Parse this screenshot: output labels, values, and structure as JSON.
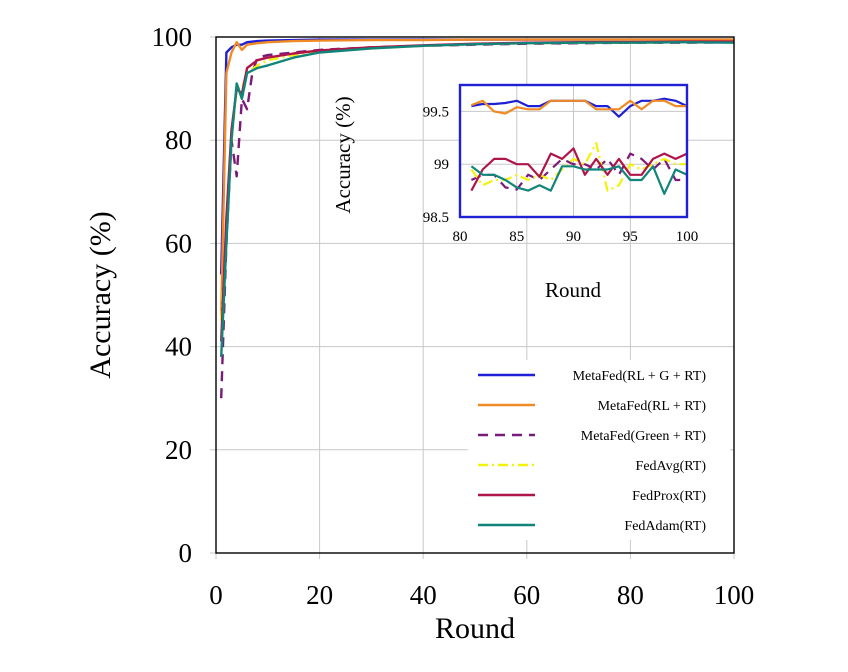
{
  "chart_data": [
    {
      "type": "line",
      "xlabel": "Round",
      "ylabel": "Accuracy (%)",
      "xlim": [
        0,
        100
      ],
      "ylim": [
        0,
        100
      ],
      "xticks": [
        0,
        20,
        40,
        60,
        80,
        100
      ],
      "yticks": [
        0,
        20,
        40,
        60,
        80,
        100
      ],
      "grid": true,
      "legend_position": "bottom-right",
      "series": [
        {
          "name": "MetaFed(RL + G + RT)",
          "color": "#1f1fd6",
          "dash": "solid",
          "x": [
            1,
            2,
            3,
            4,
            5,
            6,
            8,
            10,
            15,
            20,
            30,
            40,
            50,
            60,
            70,
            80,
            90,
            100
          ],
          "y": [
            54,
            97,
            98,
            98.5,
            98.5,
            99,
            99.2,
            99.3,
            99.4,
            99.5,
            99.5,
            99.5,
            99.5,
            99.5,
            99.5,
            99.5,
            99.5,
            99.5
          ]
        },
        {
          "name": "MetaFed(RL + RT)",
          "color": "#f08a24",
          "dash": "solid",
          "x": [
            1,
            2,
            3,
            4,
            5,
            6,
            8,
            10,
            15,
            20,
            30,
            40,
            50,
            60,
            70,
            80,
            90,
            100
          ],
          "y": [
            46,
            93,
            97,
            99,
            97.5,
            98.5,
            98.8,
            99,
            99.2,
            99.3,
            99.4,
            99.4,
            99.5,
            99.5,
            99.5,
            99.5,
            99.5,
            99.5
          ]
        },
        {
          "name": "MetaFed(Green + RT)",
          "color": "#7a1a7a",
          "dash": "dashed",
          "x": [
            1,
            2,
            3,
            4,
            5,
            6,
            7,
            8,
            10,
            15,
            20,
            30,
            40,
            50,
            60,
            70,
            80,
            90,
            100
          ],
          "y": [
            30,
            60,
            80,
            73,
            88,
            86,
            93,
            96,
            96.5,
            97,
            97.5,
            98,
            98.3,
            98.5,
            98.7,
            98.8,
            98.9,
            98.9,
            99
          ]
        },
        {
          "name": "FedAvg(RT)",
          "color": "#f2f20a",
          "dash": "dashdot",
          "x": [
            1,
            2,
            3,
            4,
            5,
            6,
            8,
            10,
            15,
            20,
            30,
            40,
            50,
            60,
            70,
            80,
            90,
            100
          ],
          "y": [
            45,
            62,
            80,
            90,
            90,
            93,
            94.5,
            95.5,
            96.5,
            97.2,
            97.8,
            98.3,
            98.6,
            98.8,
            98.9,
            98.9,
            99,
            99
          ]
        },
        {
          "name": "FedProx(RT)",
          "color": "#b0154a",
          "dash": "solid",
          "x": [
            1,
            2,
            3,
            4,
            5,
            6,
            8,
            10,
            15,
            20,
            30,
            40,
            50,
            60,
            70,
            80,
            90,
            100
          ],
          "y": [
            41,
            65,
            82,
            90,
            89,
            94,
            95.5,
            96,
            96.8,
            97.4,
            98,
            98.4,
            98.7,
            98.9,
            99,
            99,
            99.1,
            99.1
          ]
        },
        {
          "name": "FedAdam(RT)",
          "color": "#12857a",
          "dash": "solid",
          "x": [
            1,
            2,
            3,
            4,
            5,
            6,
            8,
            10,
            15,
            20,
            30,
            40,
            50,
            60,
            70,
            80,
            90,
            100
          ],
          "y": [
            38,
            60,
            80,
            91,
            88,
            93,
            94,
            94.5,
            96,
            97,
            97.8,
            98.3,
            98.6,
            98.8,
            98.9,
            98.9,
            99,
            98.9
          ]
        }
      ]
    },
    {
      "type": "line",
      "inset": true,
      "xlabel": "Round",
      "ylabel": "Accuracy (%)",
      "xlim": [
        80,
        100
      ],
      "ylim": [
        98.5,
        99.75
      ],
      "xticks": [
        "80",
        "85",
        "90",
        "95",
        "100"
      ],
      "yticks": [
        "98.5",
        "99",
        "99.5"
      ],
      "grid": true,
      "frame_color": "#1f1fd6",
      "x": [
        81,
        82,
        83,
        84,
        85,
        86,
        87,
        88,
        89,
        90,
        91,
        92,
        93,
        94,
        95,
        96,
        97,
        98,
        99,
        100
      ],
      "series": [
        {
          "name": "MetaFed(RL + G + RT)",
          "y": [
            99.55,
            99.57,
            99.57,
            99.58,
            99.6,
            99.55,
            99.55,
            99.6,
            99.6,
            99.6,
            99.6,
            99.55,
            99.55,
            99.45,
            99.55,
            99.6,
            99.6,
            99.62,
            99.6,
            99.55
          ]
        },
        {
          "name": "MetaFed(RL + RT)",
          "y": [
            99.56,
            99.6,
            99.5,
            99.48,
            99.54,
            99.52,
            99.52,
            99.6,
            99.6,
            99.6,
            99.6,
            99.52,
            99.52,
            99.52,
            99.6,
            99.52,
            99.6,
            99.6,
            99.55,
            99.55
          ]
        },
        {
          "name": "MetaFed(Green + RT)",
          "y": [
            98.85,
            98.9,
            98.9,
            98.78,
            98.76,
            98.9,
            98.85,
            98.95,
            99.05,
            99.0,
            99.0,
            98.95,
            99.05,
            98.9,
            99.1,
            99.05,
            98.95,
            99.05,
            98.85,
            98.85
          ]
        },
        {
          "name": "FedAvg(RT)",
          "y": [
            98.95,
            98.8,
            98.85,
            98.85,
            98.9,
            98.85,
            98.9,
            98.85,
            98.95,
            99.05,
            99.0,
            99.2,
            98.75,
            98.8,
            99.0,
            98.95,
            99.0,
            99.05,
            99.0,
            99.0
          ]
        },
        {
          "name": "FedProx(RT)",
          "y": [
            98.75,
            98.95,
            99.05,
            99.05,
            99.0,
            99.0,
            98.88,
            99.1,
            99.05,
            99.15,
            98.9,
            99.05,
            98.9,
            99.05,
            98.9,
            98.9,
            99.05,
            99.1,
            99.05,
            99.1
          ]
        },
        {
          "name": "FedAdam(RT)",
          "y": [
            98.98,
            98.9,
            98.9,
            98.85,
            98.78,
            98.75,
            98.8,
            98.75,
            98.98,
            98.98,
            98.95,
            98.95,
            98.95,
            98.98,
            98.85,
            98.85,
            98.98,
            98.72,
            98.95,
            98.9
          ]
        }
      ]
    }
  ]
}
